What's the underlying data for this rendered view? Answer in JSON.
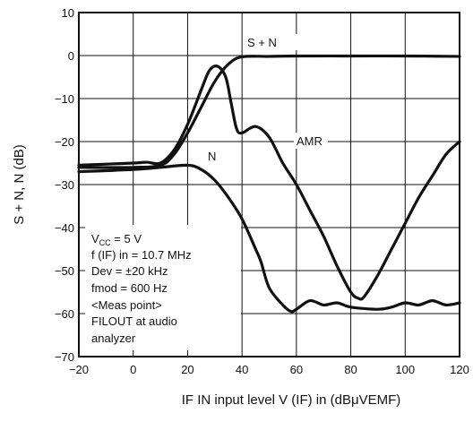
{
  "chart_data": {
    "type": "line",
    "xlabel": "IF IN input level   V (IF) in    (dBμVEMF)",
    "ylabel": "S + N, N   (dB)",
    "xlim": [
      -20,
      120
    ],
    "ylim": [
      -70,
      10
    ],
    "xticks": [
      "−20",
      "0",
      "20",
      "40",
      "60",
      "80",
      "100",
      "120"
    ],
    "yticks": [
      "10",
      "0",
      "−10",
      "−20",
      "−30",
      "−40",
      "−50",
      "−60",
      "−70"
    ],
    "grid": true,
    "series": [
      {
        "name": "S + N",
        "x": [
          -20,
          0,
          10,
          15,
          20,
          25,
          30,
          35,
          40,
          50,
          60,
          80,
          100,
          120
        ],
        "y": [
          -26,
          -26,
          -25.5,
          -23,
          -18,
          -12,
          -6,
          -2,
          -0.3,
          -0.2,
          -0.1,
          -0.1,
          -0.1,
          -0.2
        ]
      },
      {
        "name": "AMR",
        "x": [
          -20,
          0,
          5,
          10,
          15,
          20,
          25,
          28,
          31,
          34,
          36,
          38,
          40,
          45,
          50,
          55,
          60,
          65,
          70,
          75,
          80,
          83,
          85,
          90,
          95,
          100,
          105,
          110,
          115,
          120
        ],
        "y": [
          -25.5,
          -25,
          -24.8,
          -25,
          -22,
          -16,
          -8,
          -3.5,
          -2.5,
          -5,
          -11,
          -17,
          -18,
          -16.5,
          -19,
          -25,
          -30,
          -36,
          -42,
          -49,
          -55,
          -56.5,
          -56,
          -51,
          -45,
          -39,
          -33,
          -28,
          -23,
          -20
        ]
      },
      {
        "name": "N",
        "x": [
          -20,
          0,
          10,
          20,
          25,
          30,
          35,
          40,
          45,
          47,
          50,
          55,
          58,
          60,
          65,
          70,
          75,
          80,
          90,
          95,
          100,
          105,
          110,
          115,
          120
        ],
        "y": [
          -27,
          -26.5,
          -26,
          -25.5,
          -26.5,
          -29,
          -33,
          -38,
          -45,
          -48,
          -54,
          -58,
          -59.5,
          -59,
          -57,
          -58,
          -57.5,
          -58.5,
          -59,
          -58.5,
          -57.5,
          -58,
          -57,
          -58,
          -57.5
        ]
      }
    ]
  },
  "annotation": {
    "vcc_main": "V",
    "vcc_sub": "CC",
    "vcc_value": " = 5 V",
    "lines": [
      "f (IF) in = 10.7 MHz",
      "Dev = ±20 kHz",
      "fmod = 600 Hz",
      "<Meas point>",
      "FILOUT at audio",
      "analyzer"
    ]
  }
}
